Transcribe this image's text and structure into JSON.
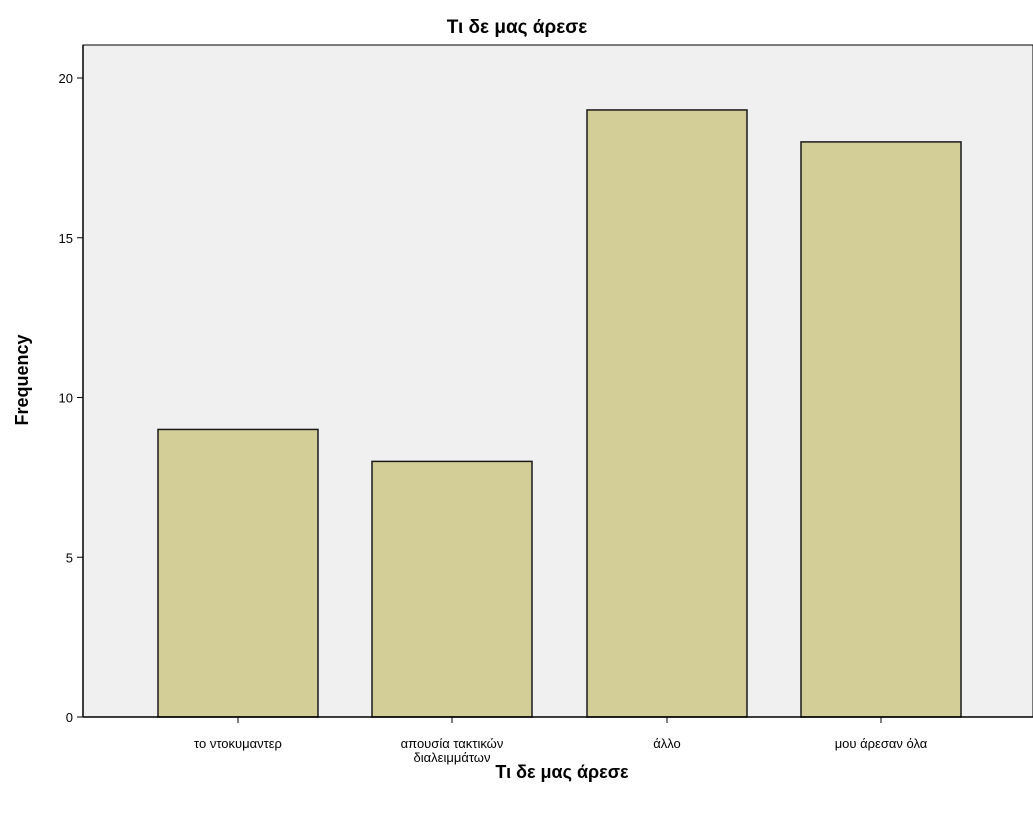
{
  "chart_data": {
    "type": "bar",
    "title": "Τι δε μας άρεσε",
    "xlabel": "Τι δε μας άρεσε",
    "ylabel": "Frequency",
    "categories": [
      [
        "το ντοκυμαντερ"
      ],
      [
        "απουσία τακτικών",
        "διαλειμμάτων"
      ],
      [
        "άλλο"
      ],
      [
        "μου άρεσαν όλα"
      ]
    ],
    "values": [
      9,
      8,
      19,
      18
    ],
    "ylim": [
      0,
      21
    ],
    "yticks": [
      0,
      5,
      10,
      15,
      20
    ],
    "grid": false,
    "legend": "none",
    "colors": {
      "plot_background": "#f0f0f0",
      "bar_fill": "#d3ce97",
      "bar_stroke": "#1a1a1a",
      "axis": "#000000"
    }
  }
}
